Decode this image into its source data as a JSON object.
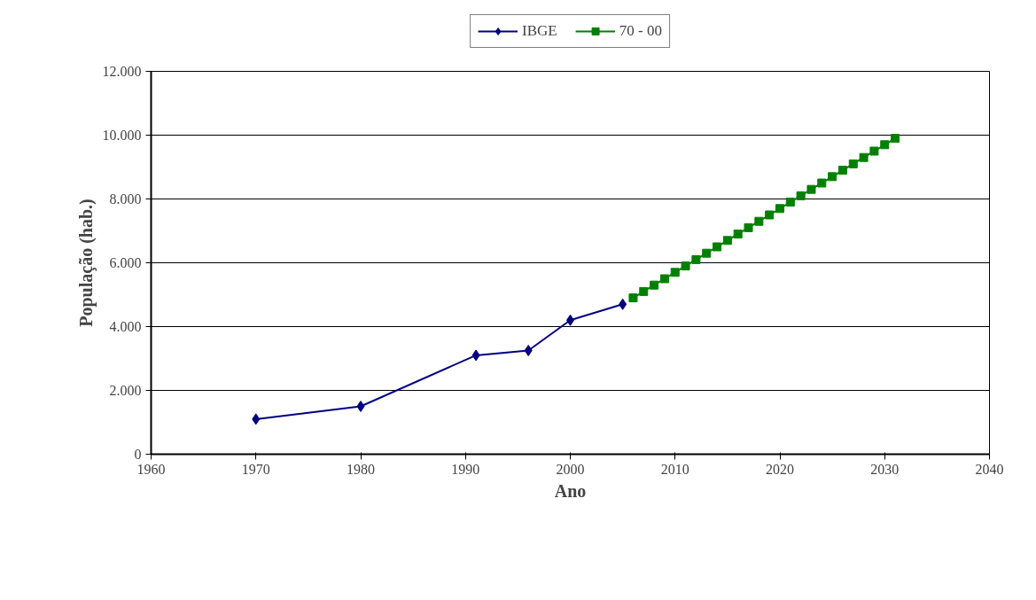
{
  "chart_data": {
    "type": "line",
    "xlabel": "Ano",
    "ylabel": "População (hab.)",
    "xlim": [
      1960,
      2040
    ],
    "xticks": [
      1960,
      1970,
      1980,
      1990,
      2000,
      2010,
      2020,
      2030,
      2040
    ],
    "ylim": [
      0,
      12000
    ],
    "yticks": [
      0,
      {
        "value": 2000,
        "label": "2.000"
      },
      {
        "value": 4000,
        "label": "4.000"
      },
      {
        "value": 6000,
        "label": "6.000"
      },
      {
        "value": 8000,
        "label": "8.000"
      },
      {
        "value": 10000,
        "label": "10.000"
      },
      {
        "value": 12000,
        "label": "12.000"
      }
    ],
    "grid": "y",
    "legend": "top",
    "series": [
      {
        "name": "IBGE",
        "color": "#000080",
        "marker": "diamond",
        "x": [
          1970,
          1980,
          1991,
          1996,
          2000,
          2005
        ],
        "values": [
          1100,
          1500,
          3100,
          3250,
          4200,
          4700
        ]
      },
      {
        "name": "70 - 00",
        "color": "#008000",
        "marker": "square",
        "x": [
          2006,
          2007,
          2008,
          2009,
          2010,
          2011,
          2012,
          2013,
          2014,
          2015,
          2016,
          2017,
          2018,
          2019,
          2020,
          2021,
          2022,
          2023,
          2024,
          2025,
          2026,
          2027,
          2028,
          2029,
          2030,
          2031
        ],
        "values": [
          4900,
          5100,
          5300,
          5500,
          5700,
          5900,
          6100,
          6300,
          6500,
          6700,
          6900,
          7100,
          7300,
          7500,
          7700,
          7900,
          8100,
          8300,
          8500,
          8700,
          8900,
          9100,
          9300,
          9500,
          9700,
          9900
        ]
      }
    ]
  }
}
